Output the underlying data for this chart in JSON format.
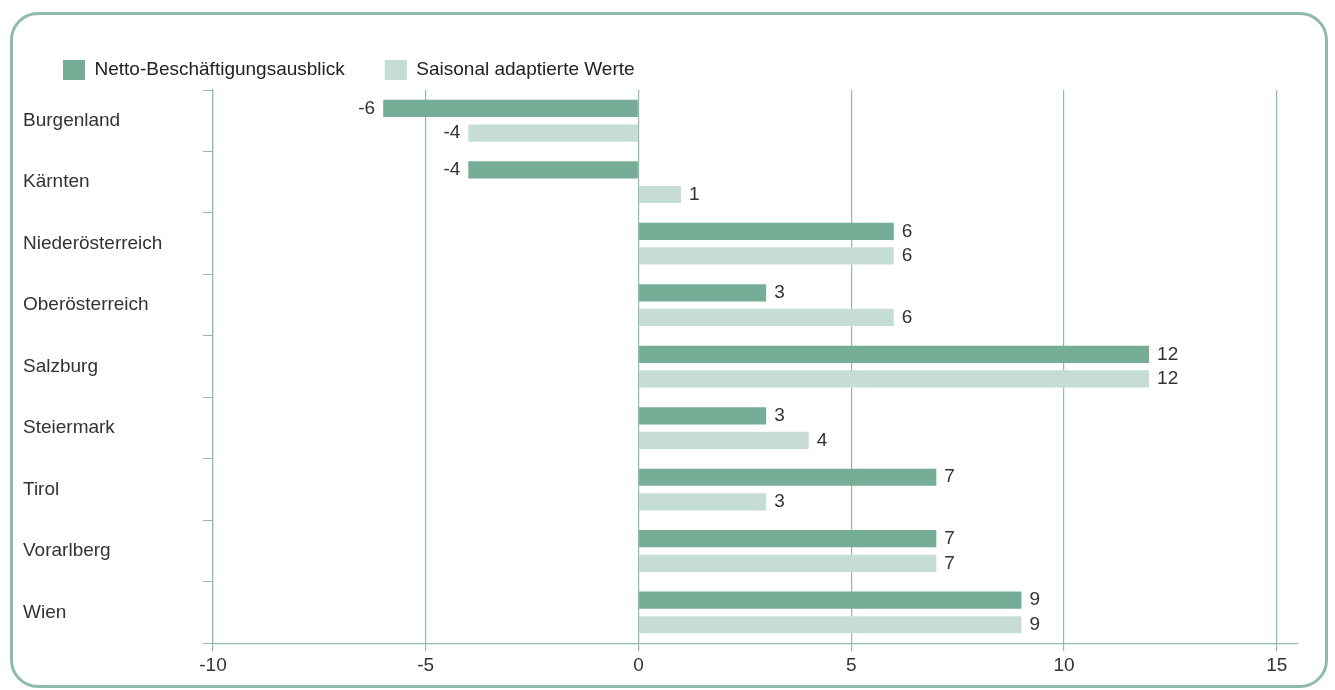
{
  "chart_data": {
    "type": "bar",
    "orientation": "horizontal",
    "categories": [
      "Burgenland",
      "Kärnten",
      "Niederösterreich",
      "Oberösterreich",
      "Salzburg",
      "Steiermark",
      "Tirol",
      "Vorarlberg",
      "Wien"
    ],
    "series": [
      {
        "name": "Netto-Beschäftigungsausblick",
        "color": "#75ad97",
        "values": [
          -6,
          -4,
          6,
          3,
          12,
          3,
          7,
          7,
          9
        ]
      },
      {
        "name": "Saisonal adaptierte Werte",
        "color": "#c5ddd3",
        "values": [
          -4,
          1,
          6,
          6,
          12,
          4,
          3,
          7,
          9
        ]
      }
    ],
    "xlim": [
      -10,
      15.5
    ],
    "xticks": [
      -10,
      -5,
      0,
      5,
      10,
      15
    ],
    "grid": "x",
    "legend": "top left",
    "data_labels": true
  }
}
